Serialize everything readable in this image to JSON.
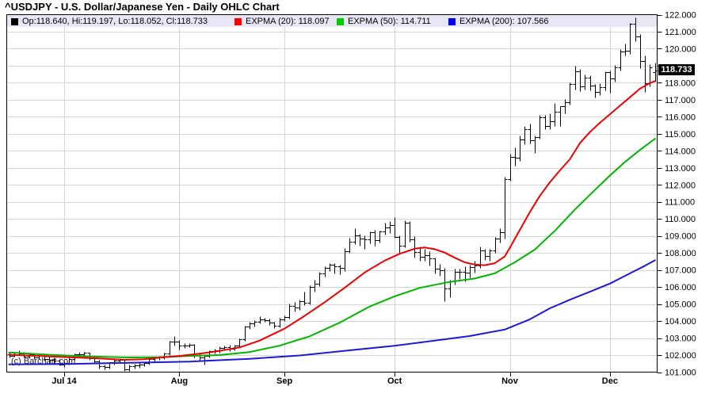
{
  "title": "^USDJPY - U.S. Dollar/Japanese Yen - Daily OHLC Chart",
  "watermark": "(c) Barchart.com",
  "last_price_label": "118.733",
  "legend": {
    "items": [
      {
        "id": "ohlc",
        "swatch": "#000000",
        "label": "Op:118.640, Hi:119.197, Lo:118.052, Cl:118.733"
      },
      {
        "id": "expma20",
        "swatch": "#ff0000",
        "label": "EXPMA (20): 118.097"
      },
      {
        "id": "expma50",
        "swatch": "#00cc00",
        "label": "EXPMA (50): 114.711"
      },
      {
        "id": "expma200",
        "swatch": "#0000ee",
        "label": "EXPMA (200): 107.566"
      }
    ]
  },
  "colors": {
    "background": "#ffffff",
    "grid": "#d6d6d6",
    "legend_band": "#e6e6f5",
    "bar": "#000000",
    "border": "#000000",
    "price_label_bg": "#000000",
    "price_label_text": "#ffffff"
  },
  "chart_data": {
    "type": "ohlc-bar",
    "title": "^USDJPY - U.S. Dollar/Japanese Yen - Daily OHLC Chart",
    "period": "Daily",
    "grid": true,
    "legend_position": "top",
    "y_axis": {
      "min": 101,
      "max": 122,
      "step": 1,
      "labels": [
        {
          "value": 122,
          "label": "122.000"
        },
        {
          "value": 121,
          "label": "121.000"
        },
        {
          "value": 120,
          "label": "120.000"
        },
        {
          "value": 118,
          "label": "118.000"
        },
        {
          "value": 117,
          "label": "117.000"
        },
        {
          "value": 116,
          "label": "116.000"
        },
        {
          "value": 115,
          "label": "115.000"
        },
        {
          "value": 114,
          "label": "114.000"
        },
        {
          "value": 113,
          "label": "113.000"
        },
        {
          "value": 112,
          "label": "112.000"
        },
        {
          "value": 111,
          "label": "111.000"
        },
        {
          "value": 110,
          "label": "110.000"
        },
        {
          "value": 109,
          "label": "109.000"
        },
        {
          "value": 108,
          "label": "108.000"
        },
        {
          "value": 107,
          "label": "107.000"
        },
        {
          "value": 106,
          "label": "106.000"
        },
        {
          "value": 105,
          "label": "105.000"
        },
        {
          "value": 104,
          "label": "104.000"
        },
        {
          "value": 103,
          "label": "103.000"
        },
        {
          "value": 102,
          "label": "102.000"
        },
        {
          "value": 101,
          "label": "101.000"
        }
      ]
    },
    "x_ticks": [
      {
        "label": "Jul 14",
        "index": 11
      },
      {
        "label": "Aug",
        "index": 34
      },
      {
        "label": "Sep",
        "index": 55
      },
      {
        "label": "Oct",
        "index": 77
      },
      {
        "label": "Nov",
        "index": 100
      },
      {
        "label": "Dec",
        "index": 120
      }
    ],
    "last_price": 118.733,
    "bars_format": [
      "open",
      "high",
      "low",
      "close"
    ],
    "bars": [
      [
        102.05,
        102.12,
        101.88,
        101.97
      ],
      [
        101.97,
        102.2,
        101.9,
        102.15
      ],
      [
        102.15,
        102.28,
        101.98,
        102.1
      ],
      [
        102.1,
        102.18,
        101.85,
        101.93
      ],
      [
        101.93,
        102.1,
        101.83,
        102.05
      ],
      [
        102.05,
        102.1,
        101.78,
        101.88
      ],
      [
        101.88,
        102.05,
        101.75,
        101.97
      ],
      [
        101.97,
        102.05,
        101.68,
        101.78
      ],
      [
        101.78,
        101.9,
        101.6,
        101.7
      ],
      [
        101.7,
        101.85,
        101.55,
        101.67
      ],
      [
        101.67,
        101.76,
        101.4,
        101.45
      ],
      [
        101.45,
        101.62,
        101.32,
        101.52
      ],
      [
        101.52,
        101.88,
        101.45,
        101.77
      ],
      [
        101.77,
        102.1,
        101.7,
        102.07
      ],
      [
        102.07,
        102.17,
        101.95,
        102.06
      ],
      [
        102.06,
        102.2,
        101.95,
        102.13
      ],
      [
        102.13,
        102.16,
        101.72,
        101.8
      ],
      [
        101.8,
        101.9,
        101.55,
        101.65
      ],
      [
        101.65,
        101.7,
        101.23,
        101.33
      ],
      [
        101.33,
        101.45,
        101.18,
        101.3
      ],
      [
        101.3,
        101.6,
        101.23,
        101.56
      ],
      [
        101.56,
        101.75,
        101.45,
        101.66
      ],
      [
        101.66,
        101.8,
        101.52,
        101.7
      ],
      [
        101.7,
        101.76,
        101.08,
        101.17
      ],
      [
        101.17,
        101.45,
        101.09,
        101.34
      ],
      [
        101.34,
        101.48,
        101.22,
        101.4
      ],
      [
        101.4,
        101.55,
        101.25,
        101.46
      ],
      [
        101.46,
        101.6,
        101.35,
        101.52
      ],
      [
        101.52,
        101.85,
        101.44,
        101.78
      ],
      [
        101.78,
        101.92,
        101.65,
        101.84
      ],
      [
        101.84,
        101.95,
        101.7,
        101.86
      ],
      [
        101.86,
        102.15,
        101.78,
        102.1
      ],
      [
        102.1,
        102.85,
        102.0,
        102.77
      ],
      [
        102.77,
        103.1,
        102.58,
        102.8
      ],
      [
        102.8,
        102.87,
        102.35,
        102.56
      ],
      [
        102.56,
        102.7,
        102.4,
        102.57
      ],
      [
        102.57,
        102.72,
        102.45,
        102.61
      ],
      [
        102.61,
        102.66,
        101.85,
        102.0
      ],
      [
        102.0,
        102.12,
        101.65,
        101.87
      ],
      [
        101.87,
        102.05,
        101.45,
        101.97
      ],
      [
        101.97,
        102.3,
        101.88,
        102.23
      ],
      [
        102.23,
        102.37,
        102.1,
        102.26
      ],
      [
        102.26,
        102.52,
        102.15,
        102.44
      ],
      [
        102.44,
        102.58,
        102.3,
        102.46
      ],
      [
        102.46,
        102.62,
        102.25,
        102.37
      ],
      [
        102.37,
        102.62,
        102.3,
        102.57
      ],
      [
        102.57,
        102.99,
        102.5,
        102.93
      ],
      [
        102.93,
        103.72,
        102.85,
        103.66
      ],
      [
        103.66,
        103.97,
        103.55,
        103.85
      ],
      [
        103.85,
        104.07,
        103.7,
        103.96
      ],
      [
        103.96,
        104.28,
        103.86,
        104.09
      ],
      [
        104.09,
        104.17,
        103.94,
        104.05
      ],
      [
        104.05,
        104.13,
        103.78,
        103.89
      ],
      [
        103.89,
        103.97,
        103.58,
        103.73
      ],
      [
        103.73,
        104.17,
        103.65,
        104.09
      ],
      [
        104.09,
        104.32,
        104.0,
        104.24
      ],
      [
        104.24,
        105.02,
        104.15,
        104.88
      ],
      [
        104.88,
        105.1,
        104.58,
        104.78
      ],
      [
        104.78,
        105.28,
        104.65,
        105.15
      ],
      [
        105.15,
        105.71,
        104.92,
        105.07
      ],
      [
        105.07,
        106.08,
        105.0,
        106.02
      ],
      [
        106.02,
        106.42,
        105.72,
        106.2
      ],
      [
        106.2,
        106.88,
        106.04,
        106.82
      ],
      [
        106.82,
        107.22,
        106.6,
        107.1
      ],
      [
        107.1,
        107.38,
        106.93,
        107.32
      ],
      [
        107.32,
        107.42,
        106.78,
        107.2
      ],
      [
        107.2,
        107.32,
        106.73,
        107.12
      ],
      [
        107.12,
        108.28,
        106.95,
        108.12
      ],
      [
        108.12,
        108.87,
        108.0,
        108.67
      ],
      [
        108.67,
        109.46,
        108.52,
        109.03
      ],
      [
        109.03,
        109.12,
        108.42,
        108.84
      ],
      [
        108.84,
        109.02,
        108.24,
        108.8
      ],
      [
        108.8,
        109.28,
        108.55,
        109.2
      ],
      [
        109.2,
        109.36,
        108.45,
        108.76
      ],
      [
        108.76,
        109.32,
        108.6,
        109.28
      ],
      [
        109.28,
        109.76,
        109.08,
        109.48
      ],
      [
        109.48,
        109.86,
        109.18,
        109.64
      ],
      [
        109.64,
        110.09,
        108.88,
        108.93
      ],
      [
        108.93,
        109.02,
        108.0,
        108.42
      ],
      [
        108.42,
        109.92,
        108.33,
        109.76
      ],
      [
        109.76,
        109.88,
        108.68,
        108.8
      ],
      [
        108.8,
        108.97,
        107.73,
        108.06
      ],
      [
        108.06,
        108.38,
        107.53,
        107.76
      ],
      [
        107.76,
        108.22,
        107.53,
        107.86
      ],
      [
        107.86,
        108.12,
        107.24,
        107.66
      ],
      [
        107.66,
        107.72,
        106.78,
        107.06
      ],
      [
        107.06,
        107.36,
        106.68,
        107.0
      ],
      [
        107.0,
        107.12,
        105.19,
        105.93
      ],
      [
        105.93,
        106.42,
        105.38,
        106.31
      ],
      [
        106.31,
        107.06,
        106.15,
        106.88
      ],
      [
        106.88,
        107.06,
        106.48,
        106.91
      ],
      [
        106.91,
        107.22,
        106.33,
        106.86
      ],
      [
        106.86,
        107.32,
        106.58,
        107.16
      ],
      [
        107.16,
        107.56,
        106.83,
        107.26
      ],
      [
        107.26,
        108.38,
        107.14,
        108.16
      ],
      [
        108.16,
        108.22,
        107.58,
        107.81
      ],
      [
        107.81,
        108.26,
        107.53,
        108.16
      ],
      [
        108.16,
        108.92,
        108.0,
        108.86
      ],
      [
        108.86,
        109.47,
        108.63,
        109.21
      ],
      [
        109.21,
        112.48,
        108.84,
        112.32
      ],
      [
        112.32,
        113.82,
        112.25,
        113.62
      ],
      [
        113.62,
        114.22,
        113.14,
        113.6
      ],
      [
        113.6,
        114.88,
        113.4,
        114.66
      ],
      [
        114.66,
        115.46,
        114.38,
        115.26
      ],
      [
        115.26,
        115.58,
        114.43,
        114.6
      ],
      [
        114.6,
        114.92,
        113.86,
        114.82
      ],
      [
        114.82,
        116.1,
        114.7,
        115.96
      ],
      [
        115.96,
        116.09,
        115.28,
        115.46
      ],
      [
        115.46,
        116.22,
        115.25,
        115.76
      ],
      [
        115.76,
        116.82,
        115.44,
        116.31
      ],
      [
        116.31,
        116.62,
        115.46,
        116.62
      ],
      [
        116.62,
        117.06,
        116.18,
        116.87
      ],
      [
        116.87,
        118.02,
        116.72,
        117.92
      ],
      [
        117.92,
        118.98,
        117.58,
        118.66
      ],
      [
        118.66,
        118.82,
        117.52,
        117.8
      ],
      [
        117.8,
        118.47,
        117.62,
        118.32
      ],
      [
        118.32,
        118.42,
        117.53,
        117.82
      ],
      [
        117.82,
        117.92,
        117.14,
        117.46
      ],
      [
        117.46,
        117.97,
        117.28,
        117.72
      ],
      [
        117.72,
        118.68,
        117.56,
        118.62
      ],
      [
        118.62,
        118.72,
        117.42,
        118.26
      ],
      [
        118.26,
        119.02,
        118.08,
        118.92
      ],
      [
        118.92,
        119.98,
        118.73,
        119.82
      ],
      [
        119.82,
        120.28,
        119.62,
        119.88
      ],
      [
        119.88,
        121.52,
        119.7,
        121.46
      ],
      [
        121.46,
        121.85,
        120.42,
        120.72
      ],
      [
        120.72,
        120.88,
        118.86,
        119.28
      ],
      [
        119.28,
        119.62,
        117.44,
        117.96
      ],
      [
        117.96,
        119.08,
        117.8,
        118.92
      ],
      [
        118.64,
        119.197,
        118.052,
        118.733
      ]
    ],
    "overlays": [
      {
        "name": "EXPMA (20)",
        "value": 118.097,
        "color": "#ee0000",
        "points": [
          [
            0,
            102.02
          ],
          [
            6,
            101.95
          ],
          [
            12,
            101.87
          ],
          [
            18,
            101.8
          ],
          [
            23,
            101.72
          ],
          [
            27,
            101.76
          ],
          [
            30,
            101.85
          ],
          [
            34,
            101.95
          ],
          [
            38,
            102.08
          ],
          [
            42,
            102.25
          ],
          [
            46,
            102.45
          ],
          [
            50,
            102.85
          ],
          [
            55,
            103.55
          ],
          [
            59,
            104.3
          ],
          [
            63,
            105.1
          ],
          [
            67,
            105.95
          ],
          [
            71,
            106.85
          ],
          [
            75,
            107.55
          ],
          [
            78,
            107.95
          ],
          [
            81,
            108.25
          ],
          [
            83,
            108.32
          ],
          [
            85,
            108.22
          ],
          [
            87,
            108.02
          ],
          [
            89,
            107.72
          ],
          [
            91,
            107.45
          ],
          [
            93,
            107.32
          ],
          [
            95,
            107.28
          ],
          [
            97,
            107.4
          ],
          [
            99,
            107.8
          ],
          [
            100,
            108.3
          ],
          [
            102,
            109.35
          ],
          [
            104,
            110.4
          ],
          [
            106,
            111.35
          ],
          [
            108,
            112.15
          ],
          [
            110,
            112.85
          ],
          [
            112,
            113.5
          ],
          [
            114,
            114.45
          ],
          [
            116,
            115.1
          ],
          [
            118,
            115.65
          ],
          [
            120,
            116.15
          ],
          [
            122,
            116.65
          ],
          [
            124,
            117.15
          ],
          [
            126,
            117.65
          ],
          [
            128,
            117.98
          ],
          [
            129,
            118.1
          ]
        ]
      },
      {
        "name": "EXPMA (50)",
        "value": 114.711,
        "color": "#00b400",
        "points": [
          [
            0,
            102.15
          ],
          [
            8,
            102.02
          ],
          [
            16,
            101.92
          ],
          [
            24,
            101.86
          ],
          [
            30,
            101.88
          ],
          [
            36,
            101.95
          ],
          [
            42,
            102.0
          ],
          [
            48,
            102.18
          ],
          [
            54,
            102.55
          ],
          [
            60,
            103.1
          ],
          [
            66,
            103.9
          ],
          [
            72,
            104.85
          ],
          [
            77,
            105.45
          ],
          [
            82,
            105.95
          ],
          [
            88,
            106.3
          ],
          [
            93,
            106.5
          ],
          [
            97,
            106.8
          ],
          [
            101,
            107.45
          ],
          [
            105,
            108.2
          ],
          [
            109,
            109.3
          ],
          [
            113,
            110.55
          ],
          [
            117,
            111.7
          ],
          [
            120,
            112.55
          ],
          [
            123,
            113.35
          ],
          [
            126,
            114.05
          ],
          [
            129,
            114.71
          ]
        ]
      },
      {
        "name": "EXPMA (200)",
        "value": 107.566,
        "color": "#1a1ad8",
        "points": [
          [
            0,
            101.45
          ],
          [
            12,
            101.48
          ],
          [
            24,
            101.55
          ],
          [
            36,
            101.62
          ],
          [
            48,
            101.78
          ],
          [
            58,
            101.98
          ],
          [
            68,
            102.28
          ],
          [
            77,
            102.55
          ],
          [
            85,
            102.85
          ],
          [
            92,
            103.12
          ],
          [
            99,
            103.5
          ],
          [
            104,
            104.1
          ],
          [
            108,
            104.75
          ],
          [
            112,
            105.25
          ],
          [
            116,
            105.72
          ],
          [
            120,
            106.2
          ],
          [
            124,
            106.8
          ],
          [
            127,
            107.25
          ],
          [
            129,
            107.57
          ]
        ]
      }
    ]
  }
}
